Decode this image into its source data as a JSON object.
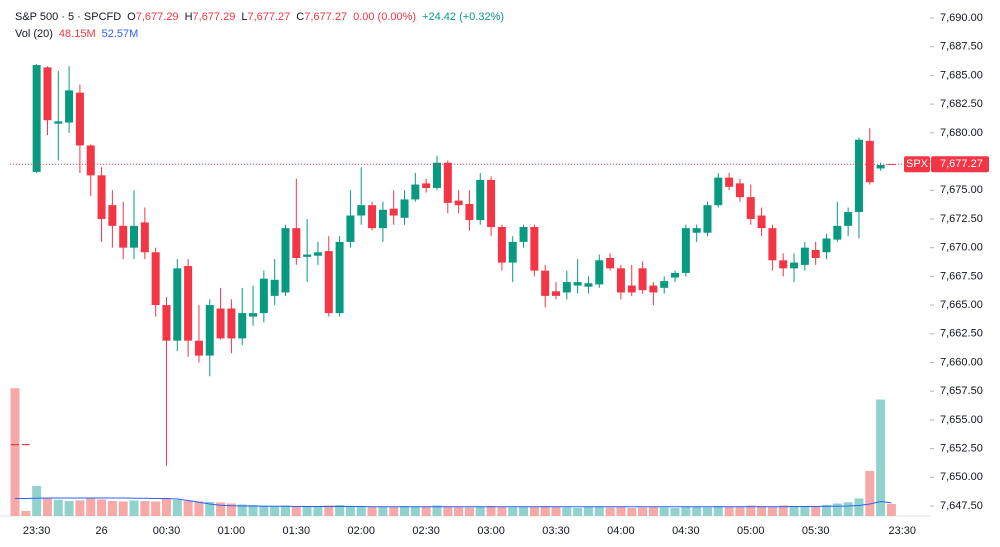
{
  "chart_data": {
    "type": "candlestick",
    "header": [
      [
        {
          "text": "S&P 500 · 5 · SPCFD",
          "color": "#131722"
        },
        {
          "text": "O",
          "color": "#131722"
        },
        {
          "text": "7,677.29",
          "color": "#f23645"
        },
        {
          "text": "H",
          "color": "#131722"
        },
        {
          "text": "7,677.29",
          "color": "#f23645"
        },
        {
          "text": "L",
          "color": "#131722"
        },
        {
          "text": "7,677.27",
          "color": "#f23645"
        },
        {
          "text": "C",
          "color": "#131722"
        },
        {
          "text": "7,677.27",
          "color": "#f23645"
        },
        {
          "text": "0.00 (0.00%)",
          "color": "#f23645"
        },
        {
          "text": "+24.42 (+0.32%)",
          "color": "#089981"
        }
      ],
      [
        {
          "text": "Vol (20)",
          "color": "#131722"
        },
        {
          "text": "48.15M",
          "color": "#f23645"
        },
        {
          "text": "52.57M",
          "color": "#2962ff"
        }
      ]
    ],
    "categories": [
      null,
      null,
      "23:30",
      null,
      null,
      null,
      null,
      null,
      "26",
      null,
      null,
      null,
      null,
      null,
      "00:30",
      null,
      null,
      null,
      null,
      null,
      "01:00",
      null,
      null,
      null,
      null,
      null,
      "01:30",
      null,
      null,
      null,
      null,
      null,
      "02:00",
      null,
      null,
      null,
      null,
      null,
      "02:30",
      null,
      null,
      null,
      null,
      null,
      "03:00",
      null,
      null,
      null,
      null,
      null,
      "03:30",
      null,
      null,
      null,
      null,
      null,
      "04:00",
      null,
      null,
      null,
      null,
      null,
      "04:30",
      null,
      null,
      null,
      null,
      null,
      "05:00",
      null,
      null,
      null,
      null,
      null,
      "05:30",
      null,
      null,
      null,
      null,
      null,
      null,
      null,
      "23:30"
    ],
    "open": [
      7652.9,
      7652.9,
      7676.6,
      7685.7,
      7680.8,
      7680.9,
      7683.5,
      7678.9,
      7676.3,
      7673.7,
      7671.9,
      7670.0,
      7672.2,
      7669.6,
      7665.0,
      7661.9,
      7668.4,
      7661.9,
      7660.6,
      7664.7,
      7664.7,
      7662.1,
      7664.0,
      7664.3,
      7665.8,
      7666.1,
      7671.7,
      7669.2,
      7669.3,
      7669.7,
      7664.3,
      7670.5,
      7672.8,
      7673.7,
      7671.7,
      7673.4,
      7672.6,
      7674.2,
      7675.6,
      7675.2,
      7677.4,
      7674.1,
      7673.8,
      7672.4,
      7675.9,
      7671.8,
      7668.7,
      7670.5,
      7671.8,
      7668.0,
      7666.2,
      7666.1,
      7666.7,
      7666.6,
      7666.8,
      7669.1,
      7668.2,
      7666.7,
      7668.2,
      7666.7,
      7666.5,
      7667.4,
      7667.8,
      7671.3,
      7671.3,
      7673.7,
      7676.1,
      7675.6,
      7674.4,
      7672.8,
      7671.7,
      7668.9,
      7668.2,
      7668.5,
      7669.8,
      7669.6,
      7670.7,
      7671.9,
      7673.1,
      7679.3,
      7676.9,
      7677.29,
      null
    ],
    "high": [
      7652.9,
      7652.9,
      7686.0,
      7685.8,
      7685.4,
      7685.8,
      7684.2,
      7679.0,
      7677.0,
      7675.0,
      7674.0,
      7675.0,
      7673.5,
      7670.0,
      7665.7,
      7669.0,
      7669.0,
      7665.0,
      7665.5,
      7666.5,
      7665.5,
      7666.5,
      7666.7,
      7668.0,
      7669.0,
      7672.0,
      7676.0,
      7672.5,
      7670.5,
      7671.0,
      7671.0,
      7675.0,
      7677.0,
      7674.0,
      7674.0,
      7675.0,
      7675.0,
      7676.5,
      7676.0,
      7678.0,
      7677.6,
      7675.0,
      7675.0,
      7676.5,
      7676.2,
      7672.0,
      7671.0,
      7672.0,
      7672.0,
      7668.5,
      7667.0,
      7668.0,
      7669.0,
      7667.5,
      7669.4,
      7669.5,
      7668.5,
      7668.5,
      7668.8,
      7667.0,
      7667.5,
      7668.0,
      7672.0,
      7672.0,
      7674.0,
      7676.5,
      7676.5,
      7676.0,
      7675.5,
      7673.5,
      7672.0,
      7669.5,
      7669.5,
      7670.5,
      7670.5,
      7671.2,
      7674.0,
      7673.5,
      7679.6,
      7680.4,
      7677.4,
      7677.29,
      null
    ],
    "low": [
      7652.9,
      7652.8,
      7676.5,
      7679.8,
      7677.6,
      7680.0,
      7676.5,
      7674.5,
      7670.5,
      7670.0,
      7669.0,
      7669.0,
      7669.0,
      7664.0,
      7651.0,
      7661.0,
      7660.5,
      7660.0,
      7658.8,
      7662.0,
      7660.8,
      7661.5,
      7663.2,
      7663.5,
      7665.0,
      7665.8,
      7668.5,
      7667.0,
      7668.5,
      7664.0,
      7664.0,
      7670.0,
      7672.0,
      7671.5,
      7670.5,
      7672.0,
      7672.0,
      7674.0,
      7674.8,
      7675.0,
      7673.0,
      7673.0,
      7671.5,
      7672.0,
      7671.0,
      7668.0,
      7667.0,
      7670.0,
      7667.5,
      7664.8,
      7665.5,
      7665.5,
      7666.0,
      7666.0,
      7666.5,
      7668.0,
      7665.5,
      7665.8,
      7666.0,
      7665.0,
      7666.0,
      7667.0,
      7667.5,
      7670.5,
      7671.0,
      7673.5,
      7675.0,
      7674.0,
      7672.0,
      7671.0,
      7668.0,
      7667.5,
      7667.0,
      7668.0,
      7668.5,
      7669.0,
      7670.5,
      7671.0,
      7670.8,
      7675.5,
      7676.7,
      7677.27,
      null
    ],
    "close": [
      7652.8,
      7652.8,
      7685.9,
      7681.1,
      7681.0,
      7683.7,
      7678.9,
      7676.3,
      7672.5,
      7671.9,
      7670.0,
      7671.9,
      7669.6,
      7665.0,
      7661.9,
      7668.2,
      7661.9,
      7660.6,
      7665.0,
      7662.1,
      7662.1,
      7664.3,
      7664.3,
      7667.3,
      7667.2,
      7671.7,
      7669.1,
      7669.4,
      7669.6,
      7664.3,
      7670.5,
      7672.8,
      7673.7,
      7671.7,
      7673.3,
      7672.8,
      7674.2,
      7675.5,
      7675.2,
      7677.4,
      7673.9,
      7673.7,
      7672.4,
      7675.9,
      7671.8,
      7668.7,
      7670.5,
      7671.8,
      7668.0,
      7665.8,
      7665.8,
      7667.0,
      7667.0,
      7666.9,
      7668.9,
      7668.2,
      7666.1,
      7666.1,
      7666.3,
      7666.1,
      7667.1,
      7667.8,
      7671.7,
      7671.7,
      7673.7,
      7676.1,
      7675.3,
      7674.4,
      7672.5,
      7671.7,
      7668.9,
      7668.2,
      7668.7,
      7670.0,
      7669.1,
      7670.8,
      7671.9,
      7673.1,
      7679.4,
      7675.7,
      7677.2,
      7677.27,
      null
    ],
    "volume": [
      510,
      20,
      120,
      70,
      65,
      60,
      62,
      70,
      66,
      60,
      58,
      62,
      60,
      58,
      70,
      64,
      60,
      58,
      56,
      54,
      50,
      46,
      44,
      42,
      40,
      42,
      40,
      38,
      40,
      42,
      44,
      40,
      38,
      36,
      38,
      36,
      40,
      38,
      36,
      42,
      38,
      36,
      34,
      38,
      40,
      36,
      34,
      38,
      36,
      40,
      38,
      34,
      32,
      36,
      38,
      34,
      36,
      32,
      34,
      36,
      34,
      32,
      38,
      36,
      34,
      40,
      38,
      36,
      42,
      40,
      38,
      42,
      40,
      38,
      36,
      44,
      50,
      55,
      70,
      180,
      465,
      48.15,
      null
    ],
    "volume_ma": [
      70,
      70,
      71,
      72,
      72,
      72,
      72,
      72,
      72,
      72,
      72,
      71,
      71,
      70,
      70,
      68,
      62,
      55,
      48,
      43,
      41,
      40,
      40,
      39,
      39,
      39,
      38,
      38,
      38,
      38,
      38,
      38,
      38,
      37,
      37,
      37,
      37,
      37,
      37,
      37,
      37,
      37,
      37,
      37,
      37,
      37,
      37,
      37,
      37,
      37,
      37,
      37,
      37,
      37,
      37,
      37,
      37,
      37,
      37,
      37,
      37,
      37,
      37,
      37,
      37,
      37,
      37,
      37,
      37,
      37,
      37,
      37,
      38,
      38,
      38,
      39,
      39,
      40,
      42,
      48,
      58,
      52.57,
      null
    ],
    "volume_ylim": [
      0,
      2060
    ],
    "up_color": "#089981",
    "down_color": "#f23645",
    "up_volume_color": "#92d2cc",
    "down_volume_color": "#f7a9a7",
    "ma_color": "#2962ff",
    "ylim": [
      7646.63,
      7691.57
    ],
    "yticks": [
      {
        "value": 7690,
        "label": "7,690.00"
      },
      {
        "value": 7687.5,
        "label": "7,687.50"
      },
      {
        "value": 7685,
        "label": "7,685.00"
      },
      {
        "value": 7682.5,
        "label": "7,682.50"
      },
      {
        "value": 7680,
        "label": "7,680.00"
      },
      {
        "value": 7677.5,
        "label": "7,677.50"
      },
      {
        "value": 7675,
        "label": "7,675.00"
      },
      {
        "value": 7672.5,
        "label": "7,672.50"
      },
      {
        "value": 7670,
        "label": "7,670.00"
      },
      {
        "value": 7667.5,
        "label": "7,667.50"
      },
      {
        "value": 7665,
        "label": "7,665.00"
      },
      {
        "value": 7662.5,
        "label": "7,662.50"
      },
      {
        "value": 7660,
        "label": "7,660.00"
      },
      {
        "value": 7657.5,
        "label": "7,657.50"
      },
      {
        "value": 7655,
        "label": "7,655.00"
      },
      {
        "value": 7652.5,
        "label": "7,652.50"
      },
      {
        "value": 7650,
        "label": "7,650.00"
      },
      {
        "value": 7647.5,
        "label": "7,647.50"
      }
    ],
    "grid": false,
    "last_price": {
      "symbol": "SPX",
      "value": 7677.27,
      "label": "7,677.27"
    }
  }
}
